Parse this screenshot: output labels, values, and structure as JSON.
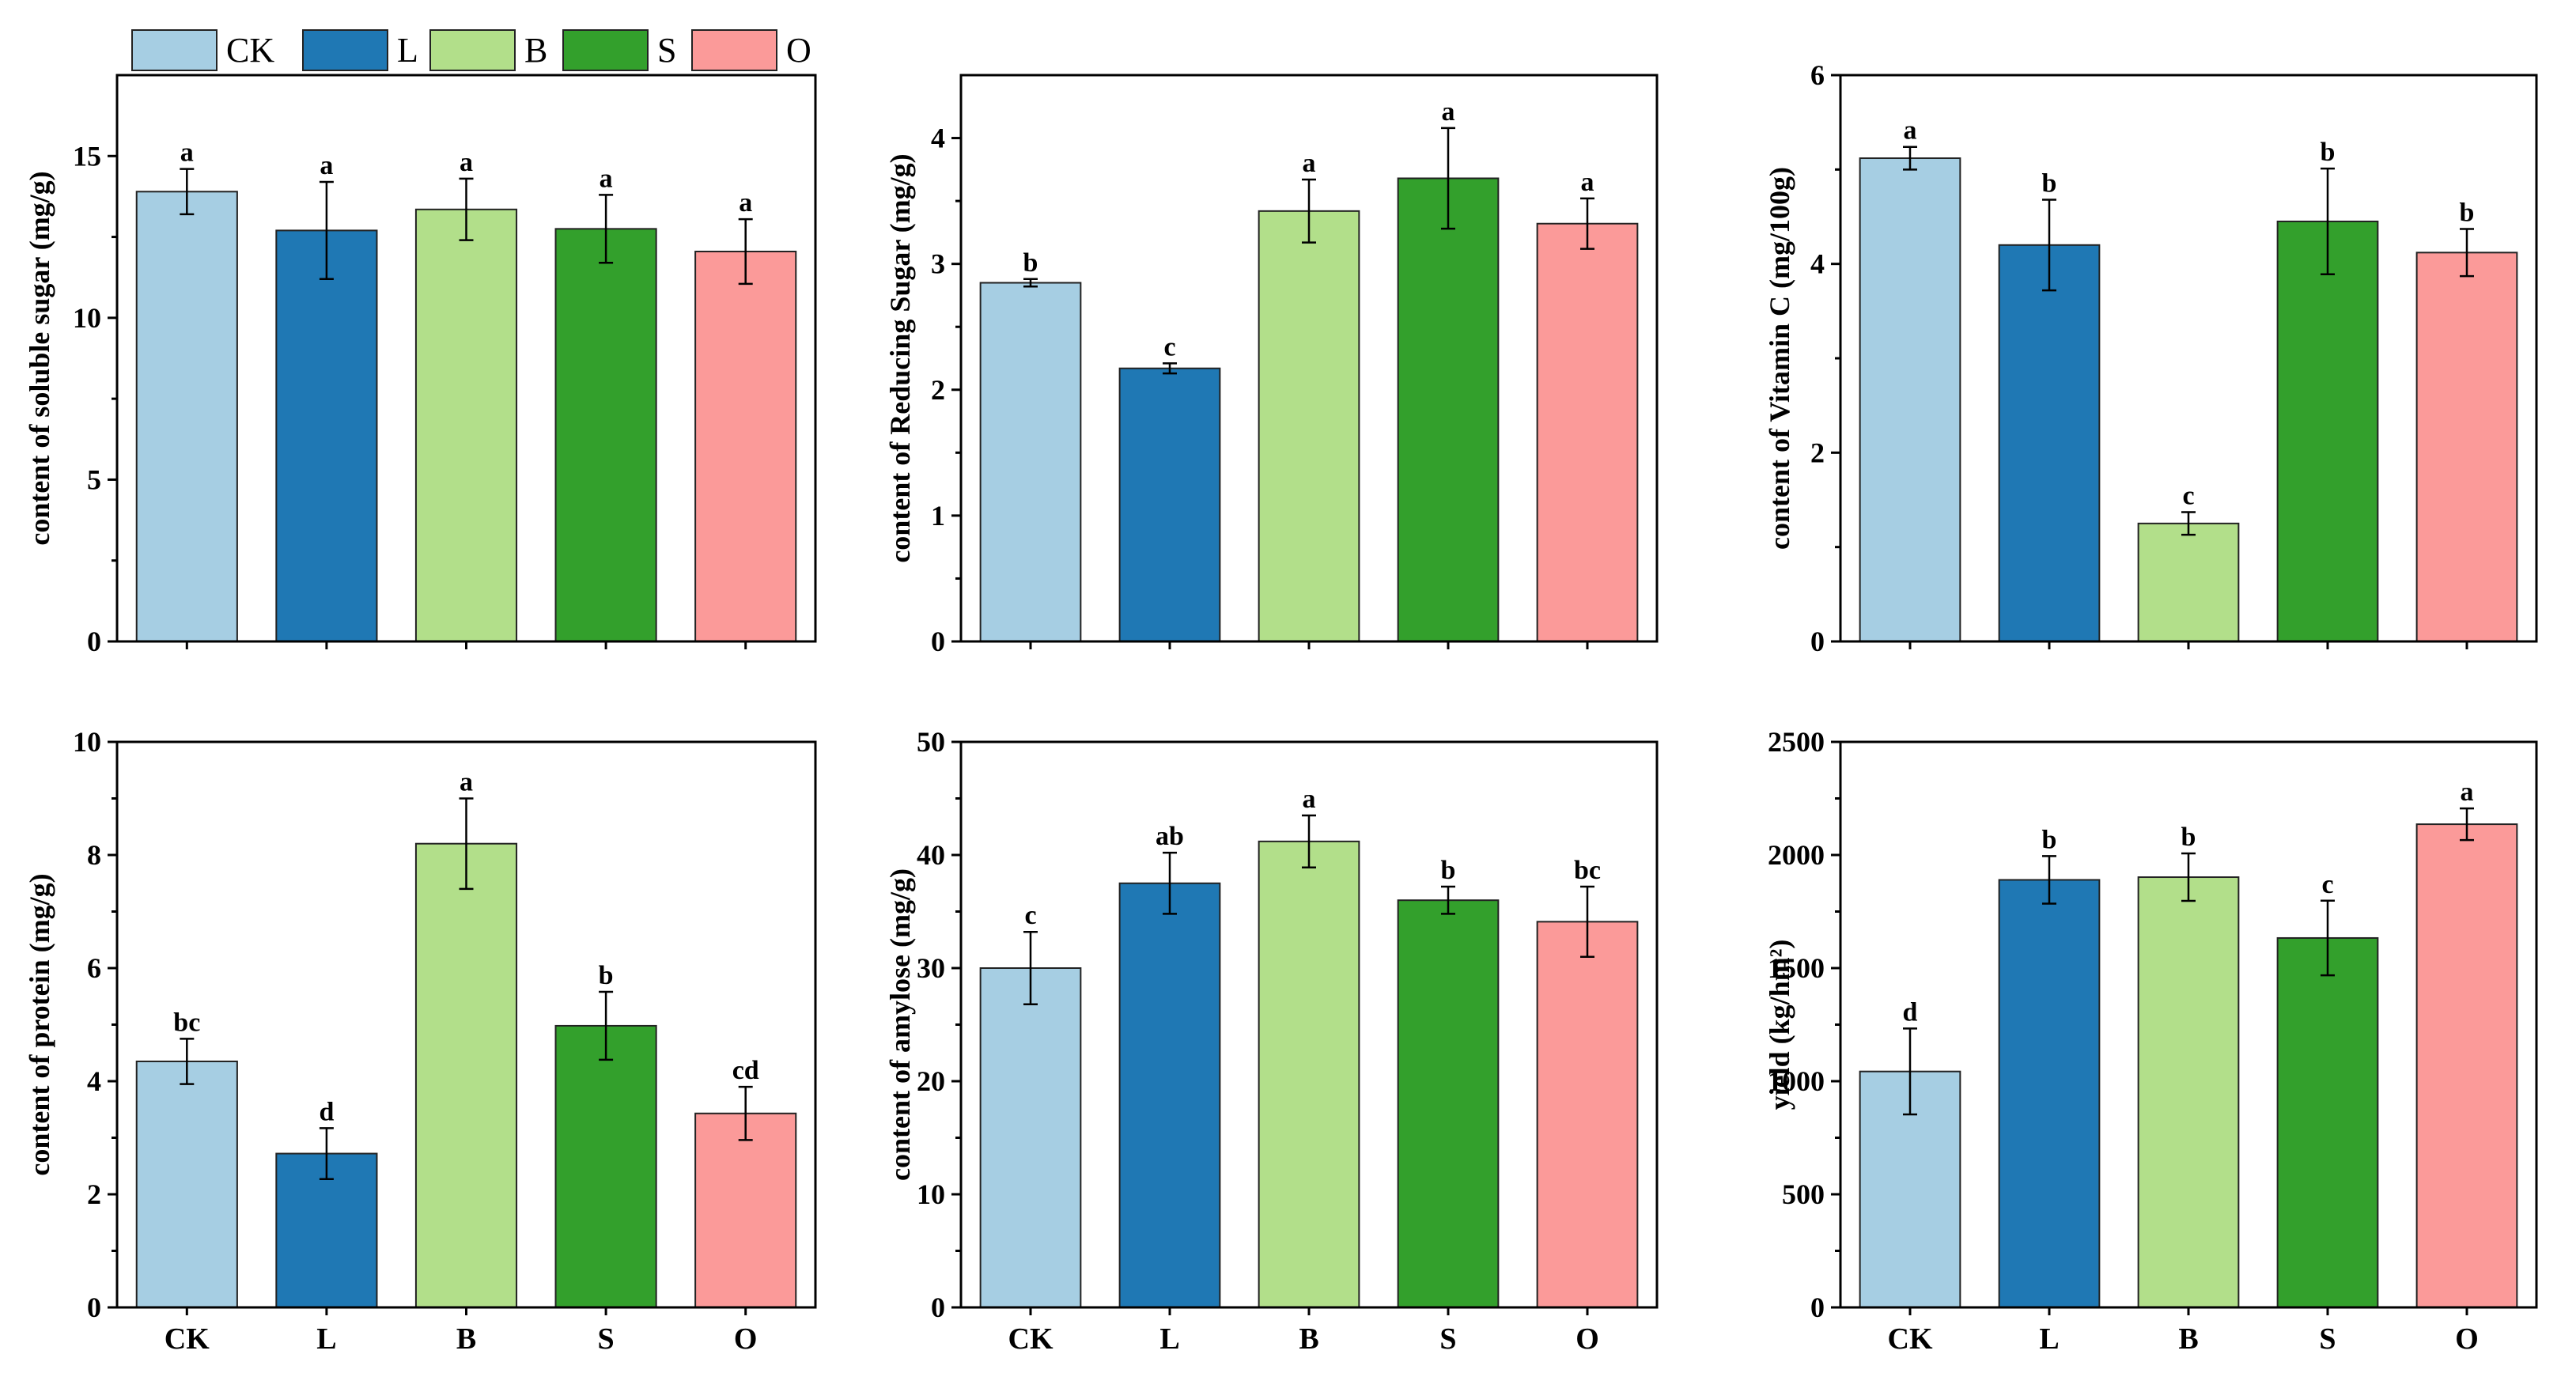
{
  "colors": {
    "CK": "#a6cee3",
    "L": "#1f78b4",
    "B": "#b2df8a",
    "S": "#33a02c",
    "O": "#fb9a99"
  },
  "legend": [
    {
      "key": "CK",
      "label": "CK"
    },
    {
      "key": "L",
      "label": "L"
    },
    {
      "key": "B",
      "label": "B"
    },
    {
      "key": "S",
      "label": "S"
    },
    {
      "key": "O",
      "label": "O"
    }
  ],
  "chart_data": [
    {
      "type": "bar",
      "ylabel": "content of soluble sugar (mg/g)",
      "categories": [
        "CK",
        "L",
        "B",
        "S",
        "O"
      ],
      "values": [
        13.9,
        12.7,
        13.35,
        12.75,
        12.05
      ],
      "errors": [
        0.7,
        1.5,
        0.95,
        1.05,
        1.0
      ],
      "significance": [
        "a",
        "a",
        "a",
        "a",
        "a"
      ],
      "ylim": [
        0,
        17.5
      ],
      "yticks": [
        0,
        5,
        10,
        15
      ],
      "show_xlabels": false
    },
    {
      "type": "bar",
      "ylabel": "content of Reducing Sugar (mg/g)",
      "categories": [
        "CK",
        "L",
        "B",
        "S",
        "O"
      ],
      "values": [
        2.85,
        2.17,
        3.42,
        3.68,
        3.32
      ],
      "errors": [
        0.03,
        0.04,
        0.25,
        0.4,
        0.2
      ],
      "significance": [
        "b",
        "c",
        "a",
        "a",
        "a"
      ],
      "ylim": [
        0,
        4.5
      ],
      "yticks": [
        0,
        1,
        2,
        3,
        4
      ],
      "show_xlabels": false
    },
    {
      "type": "bar",
      "ylabel": "content of Vitamin C (mg/100g)",
      "categories": [
        "CK",
        "L",
        "B",
        "S",
        "O"
      ],
      "values": [
        5.12,
        4.2,
        1.25,
        4.45,
        4.12
      ],
      "errors": [
        0.12,
        0.48,
        0.12,
        0.56,
        0.25
      ],
      "significance": [
        "a",
        "b",
        "c",
        "b",
        "b"
      ],
      "ylim": [
        0,
        6
      ],
      "yticks": [
        0,
        2,
        4,
        6
      ],
      "show_xlabels": false
    },
    {
      "type": "bar",
      "ylabel": "content of protein (mg/g)",
      "categories": [
        "CK",
        "L",
        "B",
        "S",
        "O"
      ],
      "values": [
        4.35,
        2.72,
        8.2,
        4.98,
        3.43
      ],
      "errors": [
        0.4,
        0.45,
        0.8,
        0.6,
        0.47
      ],
      "significance": [
        "bc",
        "d",
        "a",
        "b",
        "cd"
      ],
      "ylim": [
        0,
        10
      ],
      "yticks": [
        0,
        2,
        4,
        6,
        8,
        10
      ],
      "show_xlabels": true
    },
    {
      "type": "bar",
      "ylabel": "content of amylose (mg/g)",
      "categories": [
        "CK",
        "L",
        "B",
        "S",
        "O"
      ],
      "values": [
        30.0,
        37.5,
        41.2,
        36.0,
        34.1
      ],
      "errors": [
        3.2,
        2.7,
        2.3,
        1.2,
        3.1
      ],
      "significance": [
        "c",
        "ab",
        "a",
        "b",
        "bc"
      ],
      "ylim": [
        0,
        50
      ],
      "yticks": [
        0,
        10,
        20,
        30,
        40,
        50
      ],
      "show_xlabels": true
    },
    {
      "type": "bar",
      "ylabel": "yield  (kg/hm²)",
      "categories": [
        "CK",
        "L",
        "B",
        "S",
        "O"
      ],
      "values": [
        1043,
        1890,
        1902,
        1633,
        2136
      ],
      "errors": [
        190,
        105,
        105,
        165,
        70
      ],
      "significance": [
        "d",
        "b",
        "b",
        "c",
        "a"
      ],
      "ylim": [
        0,
        2500
      ],
      "yticks": [
        0,
        500,
        1000,
        1500,
        2000,
        2500
      ],
      "show_xlabels": true
    }
  ]
}
